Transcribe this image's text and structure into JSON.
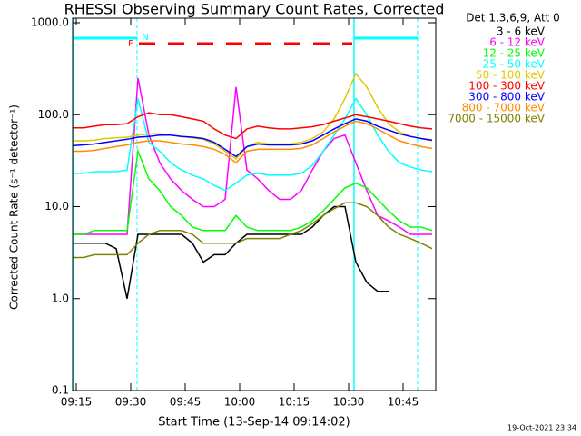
{
  "chart_data": {
    "type": "line",
    "title": "RHESSI Observing Summary Count Rates, Corrected",
    "xlabel": "Start Time (13-Sep-14 09:14:02)",
    "ylabel": "Corrected Count Rate (s⁻¹ detector⁻¹)",
    "legend_title": "Det 1,3,6,9, Att 0",
    "timestamp": "19-Oct-2021 23:34",
    "annotations": [
      {
        "text": "N"
      },
      {
        "text": "F"
      }
    ],
    "log_y": true,
    "xlim": [
      "09:14",
      "10:54"
    ],
    "xticks": [
      "09:15",
      "09:30",
      "09:45",
      "10:00",
      "10:15",
      "10:30",
      "10:45"
    ],
    "ylim": [
      0.1,
      1000
    ],
    "yticks": [
      {
        "value": 0.1,
        "label": "0.1"
      },
      {
        "value": 1,
        "label": "1.0"
      },
      {
        "value": 10,
        "label": "10.0"
      },
      {
        "value": 100,
        "label": "100.0"
      },
      {
        "value": 1000,
        "label": "1000.0"
      }
    ],
    "x": [
      "09:14",
      "09:17",
      "09:20",
      "09:23",
      "09:26",
      "09:29",
      "09:32",
      "09:35",
      "09:38",
      "09:41",
      "09:44",
      "09:47",
      "09:50",
      "09:53",
      "09:56",
      "09:59",
      "10:02",
      "10:05",
      "10:08",
      "10:11",
      "10:14",
      "10:17",
      "10:20",
      "10:23",
      "10:26",
      "10:29",
      "10:32",
      "10:35",
      "10:38",
      "10:41",
      "10:44",
      "10:47",
      "10:50",
      "10:53"
    ],
    "series": [
      {
        "name": "3 - 6 keV",
        "color": "#000000",
        "values": [
          4,
          4,
          4,
          4,
          3.5,
          1,
          5,
          5,
          5,
          5,
          5,
          4,
          2.5,
          3,
          3,
          4,
          5,
          5,
          5,
          5,
          5,
          5,
          6,
          8,
          10,
          10,
          2.5,
          1.5,
          1.2,
          1.2,
          null,
          null,
          null,
          null
        ]
      },
      {
        "name": "6 - 12 keV",
        "color": "#ff00ff",
        "values": [
          5,
          5,
          5,
          5,
          5,
          5,
          250,
          60,
          30,
          20,
          15,
          12,
          10,
          10,
          12,
          200,
          25,
          20,
          15,
          12,
          12,
          15,
          25,
          40,
          55,
          60,
          30,
          15,
          8,
          7,
          6,
          5,
          5,
          5
        ]
      },
      {
        "name": "12 - 25 keV",
        "color": "#00ff00",
        "values": [
          5,
          5,
          5.5,
          5.5,
          5.5,
          5.5,
          40,
          20,
          15,
          10,
          8,
          6,
          5.5,
          5.5,
          5.5,
          8,
          6,
          5.5,
          5.5,
          5.5,
          5.5,
          6,
          7,
          9,
          12,
          16,
          18,
          16,
          12,
          9,
          7,
          6,
          6,
          5.5
        ]
      },
      {
        "name": "25 - 50 keV",
        "color": "#00ffff",
        "values": [
          23,
          23,
          24,
          24,
          24,
          25,
          150,
          50,
          40,
          30,
          25,
          22,
          20,
          17,
          15,
          18,
          22,
          23,
          22,
          22,
          22,
          23,
          28,
          40,
          60,
          90,
          150,
          100,
          60,
          40,
          30,
          27,
          25,
          24
        ]
      },
      {
        "name": "50 - 100 keV",
        "color": "#e0c800",
        "values": [
          52,
          52,
          53,
          55,
          56,
          57,
          60,
          62,
          62,
          60,
          58,
          56,
          54,
          48,
          40,
          33,
          45,
          50,
          48,
          48,
          48,
          50,
          55,
          65,
          90,
          150,
          280,
          200,
          120,
          80,
          65,
          58,
          55,
          52
        ]
      },
      {
        "name": "100 - 300 keV",
        "color": "#ff0000",
        "values": [
          72,
          72,
          75,
          78,
          78,
          80,
          95,
          105,
          100,
          100,
          95,
          90,
          85,
          70,
          60,
          55,
          70,
          75,
          72,
          70,
          70,
          72,
          74,
          78,
          85,
          92,
          100,
          95,
          90,
          85,
          80,
          75,
          72,
          70
        ]
      },
      {
        "name": "300 - 800 keV",
        "color": "#0000ff",
        "values": [
          46,
          47,
          48,
          50,
          52,
          54,
          57,
          58,
          60,
          60,
          58,
          57,
          55,
          50,
          42,
          35,
          45,
          48,
          47,
          47,
          47,
          48,
          52,
          60,
          70,
          80,
          90,
          85,
          75,
          68,
          62,
          58,
          55,
          53
        ]
      },
      {
        "name": "800 - 7000 keV",
        "color": "#ff8c00",
        "values": [
          40,
          40,
          41,
          43,
          45,
          47,
          50,
          52,
          52,
          50,
          48,
          47,
          45,
          42,
          37,
          30,
          40,
          42,
          42,
          42,
          42,
          43,
          47,
          55,
          65,
          75,
          85,
          80,
          70,
          60,
          52,
          48,
          45,
          43
        ]
      },
      {
        "name": "7000 - 15000 keV",
        "color": "#808000",
        "values": [
          2.8,
          2.8,
          3,
          3,
          3,
          3,
          4,
          5,
          5.5,
          5.5,
          5.5,
          5,
          4,
          4,
          4,
          4,
          4.5,
          4.5,
          4.5,
          4.5,
          5,
          5.5,
          6.5,
          8,
          9.5,
          11,
          11,
          10,
          8,
          6,
          5,
          4.5,
          4,
          3.5
        ]
      }
    ]
  }
}
